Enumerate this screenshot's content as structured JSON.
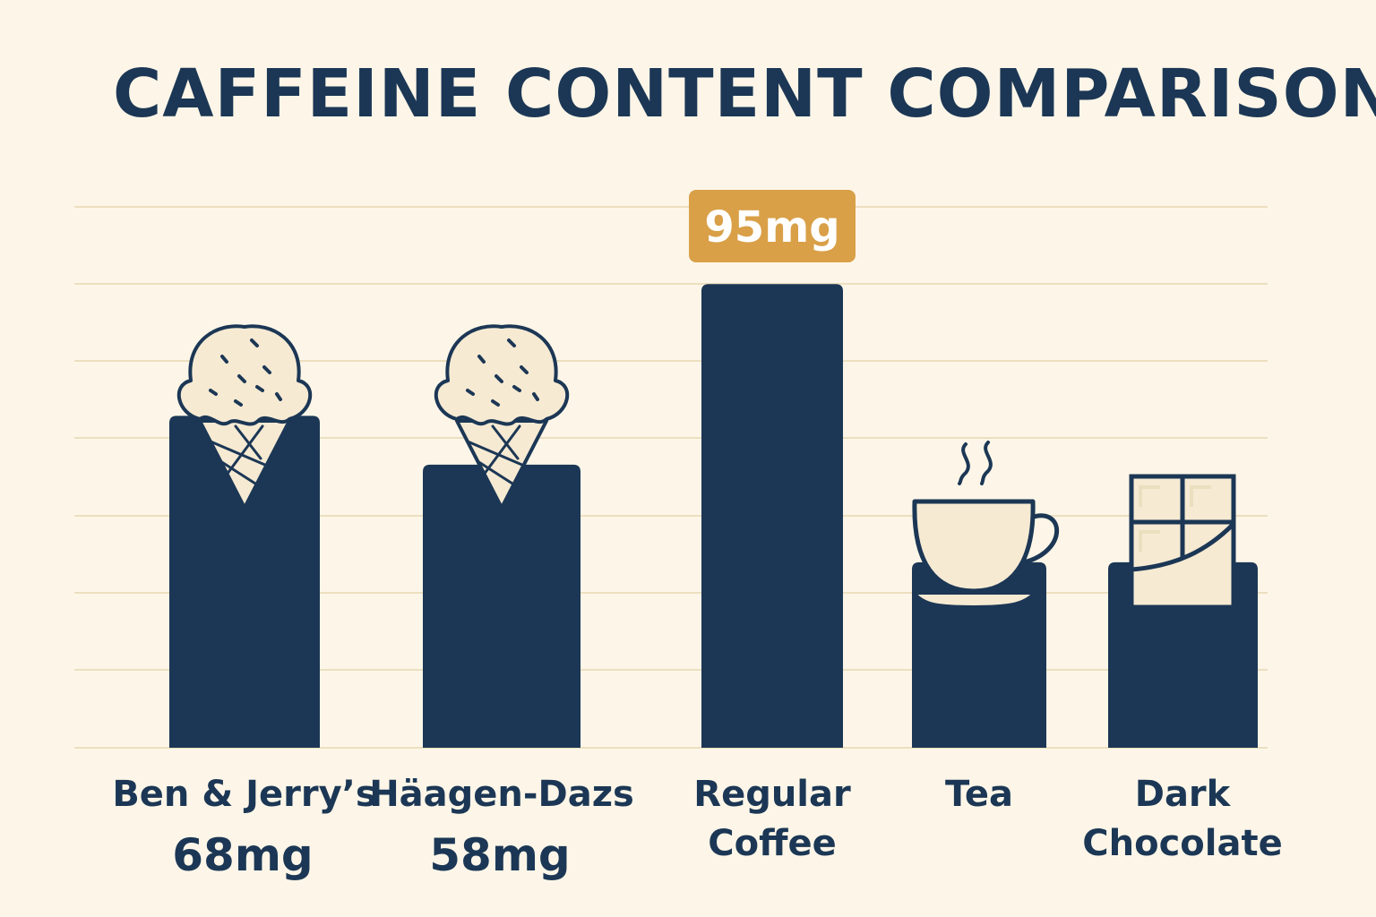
{
  "colors": {
    "background": "#fdf6e8",
    "bar": "#1c3755",
    "text": "#1c3755",
    "grid": "#ecdfc0",
    "highlight": "#d9a048",
    "highlight_text": "#ffffff",
    "icon_fill": "#f6ead3"
  },
  "chart_data": {
    "type": "bar",
    "title": "CAFFEINE CONTENT COMPARISON",
    "grid": true,
    "ylim": [
      0,
      110
    ],
    "categories": [
      "Ben & Jerry’s",
      "Häagen-Dazs",
      "Regular Coffee",
      "Tea",
      "Dark Chocolate"
    ],
    "category_label_lines": [
      [
        "Ben & Jerry’s"
      ],
      [
        "Häagen-Dazs"
      ],
      [
        "Regular",
        "Coffee"
      ],
      [
        "Tea"
      ],
      [
        "Dark",
        "Chocolate"
      ]
    ],
    "values": [
      68,
      58,
      95,
      38,
      38
    ],
    "value_labels": [
      "68mg",
      "58mg",
      "95mg",
      "",
      ""
    ],
    "highlight_label": "95mg",
    "icons": [
      "ice-cream-cone-icon",
      "ice-cream-cone-icon",
      "",
      "tea-cup-icon",
      "chocolate-bar-icon"
    ]
  }
}
